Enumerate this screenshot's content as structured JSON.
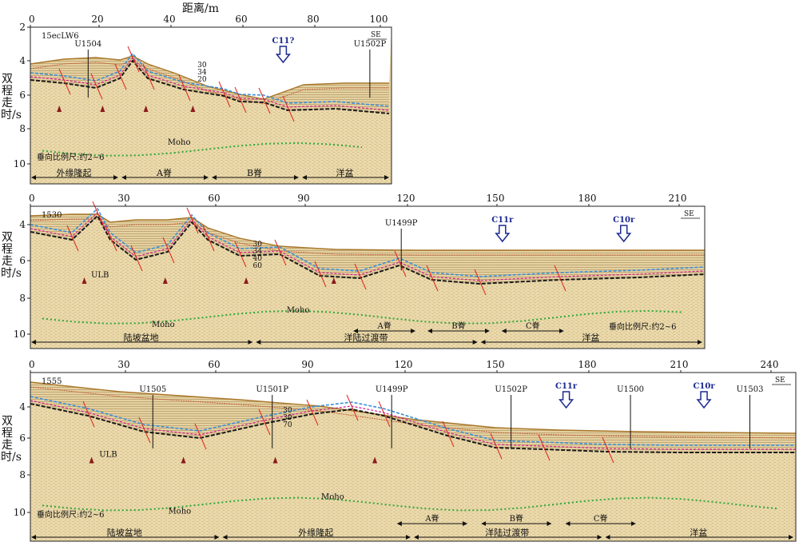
{
  "figure": {
    "x_axis_title": "距离/m",
    "y_axis_title": "双程走时/s",
    "colors": {
      "seismic_bg": "#ead9ab",
      "seismic_dark": "#c8ae78",
      "fault": "#e0231c",
      "moho": "#2fa83a",
      "horizon_blue": "#3a8fd8",
      "horizon_black": "#1a1a1a",
      "horizon_navy": "#1c2a78",
      "horizon_magenta": "#d41f8e",
      "arrow_outline": "#1c2a90",
      "uplift_arrow": "#8b1a1a"
    }
  },
  "panels": [
    {
      "id": "15ecLW6",
      "line_label": "15ecLW6",
      "direction": "SE",
      "x_ticks": [
        "0",
        "20",
        "40",
        "60",
        "80",
        "100"
      ],
      "y_ticks": [
        "2",
        "4",
        "6",
        "8",
        "10"
      ],
      "wells": [
        "U1504",
        "U1502P"
      ],
      "anomaly_labels": [
        "C11?"
      ],
      "horizon_labels": [
        "30",
        "34",
        "20"
      ],
      "moho_label": "Moho",
      "scale_note": "垂向比例尺:约2~6",
      "zones": [
        "外缘隆起",
        "A脊",
        "B脊",
        "洋盆"
      ]
    },
    {
      "id": "1530",
      "line_label": "1530",
      "direction": "SE",
      "x_ticks": [
        "0",
        "30",
        "60",
        "90",
        "120",
        "150",
        "180",
        "210"
      ],
      "y_ticks": [
        "4",
        "6",
        "8",
        "10"
      ],
      "wells": [
        "U1499P"
      ],
      "anomaly_labels": [
        "C11r",
        "C10r"
      ],
      "horizon_labels": [
        "30",
        "34",
        "40",
        "60"
      ],
      "basin_label": "ULB",
      "moho_label": "Moho",
      "moho_label_2": "Moho",
      "ridge_labels": [
        "A脊",
        "B脊",
        "C脊"
      ],
      "scale_note": "垂向比例尺:约2~6",
      "zones": [
        "陆坡盆地",
        "洋陆过渡带",
        "洋盆"
      ]
    },
    {
      "id": "1555",
      "line_label": "1555",
      "direction": "SE",
      "x_ticks": [
        "0",
        "30",
        "60",
        "90",
        "120",
        "150",
        "180",
        "210",
        "240"
      ],
      "y_ticks": [
        "4",
        "6",
        "8",
        "10"
      ],
      "wells": [
        "U1505",
        "U1501P",
        "U1499P",
        "U1502P",
        "U1500",
        "U1503"
      ],
      "anomaly_labels": [
        "C11r",
        "C10r"
      ],
      "horizon_labels": [
        "30",
        "30",
        "70"
      ],
      "basin_label": "ULB",
      "moho_label": "Moho",
      "moho_label_2": "Moho",
      "ridge_labels": [
        "A脊",
        "B脊",
        "C脊"
      ],
      "scale_note": "垂向比例尺:约2~6",
      "zones": [
        "陆坡盆地",
        "外缘隆起",
        "洋陆过渡带",
        "洋盆"
      ]
    }
  ]
}
